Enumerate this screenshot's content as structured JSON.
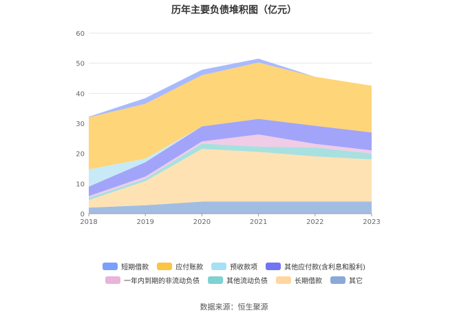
{
  "chart_data": {
    "type": "area",
    "title": "历年主要负债堆积图（亿元）",
    "x": [
      "2018",
      "2019",
      "2020",
      "2021",
      "2022",
      "2023"
    ],
    "ylim": [
      0,
      60
    ],
    "yticks": [
      0,
      10,
      20,
      30,
      40,
      50,
      60
    ],
    "stacked": true,
    "grid": true,
    "legend_position": "bottom",
    "series": [
      {
        "name": "其它",
        "color": "#a3bde2",
        "values": [
          2.0,
          2.8,
          4.0,
          4.0,
          4.0,
          4.0
        ]
      },
      {
        "name": "长期借款",
        "color": "#ffe2b3",
        "values": [
          2.5,
          8.0,
          17.5,
          16.5,
          15.0,
          14.0
        ]
      },
      {
        "name": "其他流动负债",
        "color": "#a8e0e0",
        "values": [
          0.8,
          0.8,
          1.8,
          1.8,
          3.0,
          2.0
        ]
      },
      {
        "name": "一年内到期的非流动负债",
        "color": "#f0cce6",
        "values": [
          0.5,
          0.7,
          0.7,
          4.0,
          1.2,
          1.0
        ]
      },
      {
        "name": "其他应付款(含利息和股利)",
        "color": "#a2a4fa",
        "values": [
          3.2,
          4.8,
          5.0,
          5.2,
          6.0,
          6.0
        ]
      },
      {
        "name": "预收款项",
        "color": "#c8eaf6",
        "values": [
          5.7,
          1.2,
          0.0,
          0.0,
          0.0,
          0.0
        ]
      },
      {
        "name": "应付账款",
        "color": "#fed578",
        "values": [
          17.3,
          18.2,
          17.0,
          18.7,
          16.3,
          15.5
        ]
      },
      {
        "name": "短期借款",
        "color": "#a9bafc",
        "values": [
          0.2,
          1.9,
          1.8,
          1.3,
          0.0,
          0.0
        ]
      }
    ]
  },
  "legend": {
    "row1": [
      {
        "label": "短期借款",
        "color": "#7b9ffb"
      },
      {
        "label": "应付账款",
        "color": "#fcc443"
      },
      {
        "label": "预收款项",
        "color": "#a6e0f5"
      },
      {
        "label": "其他应付款(含利息和股利)",
        "color": "#7373f5"
      }
    ],
    "row2": [
      {
        "label": "一年内到期的非流动负债",
        "color": "#e9b3da"
      },
      {
        "label": "其他流动负债",
        "color": "#7fd2d2"
      },
      {
        "label": "长期借款",
        "color": "#ffd79e"
      },
      {
        "label": "其它",
        "color": "#8aa9d8"
      }
    ]
  },
  "source": "数据来源：恒生聚源"
}
